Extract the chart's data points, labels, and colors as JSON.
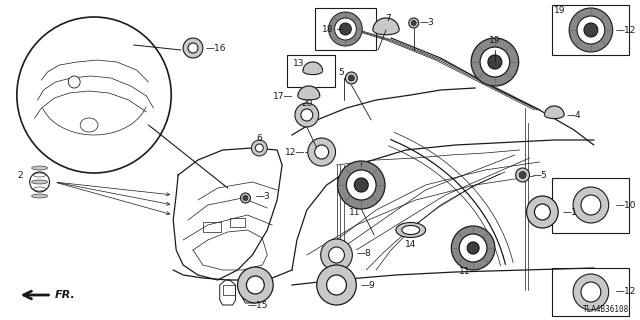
{
  "background_color": "#ffffff",
  "line_color": "#1a1a1a",
  "fig_width": 6.4,
  "fig_height": 3.2,
  "dpi": 100,
  "diagram_code": "TLA4B36108",
  "gray_fill": "#c8c8c8",
  "dark_fill": "#404040",
  "medium_fill": "#888888",
  "light_gray": "#e0e0e0"
}
